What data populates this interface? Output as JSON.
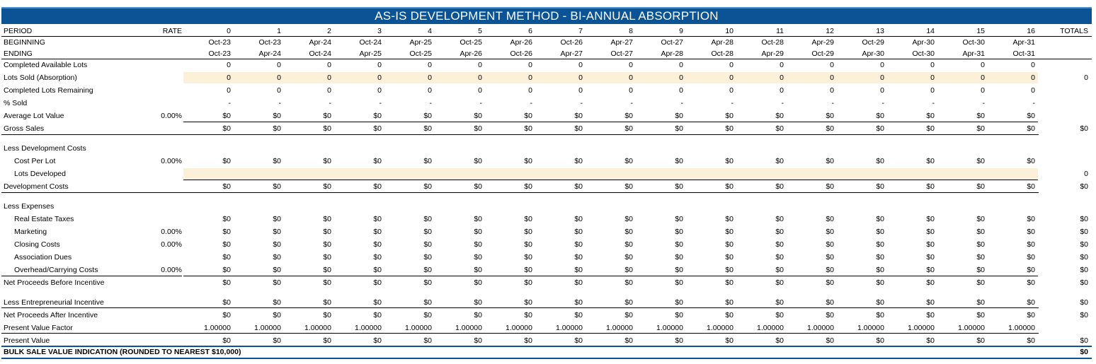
{
  "title": "AS-IS DEVELOPMENT METHOD - BI-ANNUAL ABSORPTION",
  "headers": {
    "period": "PERIOD",
    "rate": "RATE",
    "totals": "TOTALS",
    "beginning": "BEGINNING",
    "ending": "ENDING"
  },
  "periods": [
    "0",
    "1",
    "2",
    "3",
    "4",
    "5",
    "6",
    "7",
    "8",
    "9",
    "10",
    "11",
    "12",
    "13",
    "14",
    "15",
    "16"
  ],
  "beginning": [
    "Oct-23",
    "Oct-23",
    "Apr-24",
    "Oct-24",
    "Apr-25",
    "Oct-25",
    "Apr-26",
    "Oct-26",
    "Apr-27",
    "Oct-27",
    "Apr-28",
    "Oct-28",
    "Apr-29",
    "Oct-29",
    "Apr-30",
    "Oct-30",
    "Apr-31"
  ],
  "ending": [
    "Oct-23",
    "Apr-24",
    "Oct-24",
    "Apr-25",
    "Oct-25",
    "Apr-26",
    "Oct-26",
    "Apr-27",
    "Oct-27",
    "Apr-28",
    "Oct-28",
    "Apr-29",
    "Oct-29",
    "Apr-30",
    "Oct-30",
    "Apr-31",
    "Oct-31"
  ],
  "rows": [
    {
      "label": "Completed Available Lots",
      "rate": "",
      "cell": "0",
      "total": ""
    },
    {
      "label": "Lots Sold (Absorption)",
      "rate": "",
      "cell": "0",
      "total": "0"
    },
    {
      "label": "Completed Lots Remaining",
      "rate": "",
      "cell": "0",
      "total": ""
    },
    {
      "label": "% Sold",
      "rate": "",
      "cell": "-",
      "total": ""
    },
    {
      "label": "Average Lot Value",
      "rate": "0.00%",
      "cell": "$0",
      "total": ""
    },
    {
      "label": "Gross Sales",
      "rate": "",
      "cell": "$0",
      "total": "$0"
    },
    {
      "label": "Less Development Costs",
      "rate": "",
      "cell": "",
      "total": ""
    },
    {
      "label": "Cost Per Lot",
      "rate": "0.00%",
      "cell": "$0",
      "total": ""
    },
    {
      "label": "Lots Developed",
      "rate": "",
      "cell": "",
      "total": "0"
    },
    {
      "label": "Development Costs",
      "rate": "",
      "cell": "$0",
      "total": "$0"
    },
    {
      "label": "Less Expenses",
      "rate": "",
      "cell": "",
      "total": ""
    },
    {
      "label": "Real Estate Taxes",
      "rate": "",
      "cell": "$0",
      "total": "$0"
    },
    {
      "label": "Marketing",
      "rate": "0.00%",
      "cell": "$0",
      "total": "$0"
    },
    {
      "label": "Closing Costs",
      "rate": "0.00%",
      "cell": "$0",
      "total": "$0"
    },
    {
      "label": "Association Dues",
      "rate": "",
      "cell": "$0",
      "total": "$0"
    },
    {
      "label": "Overhead/Carrying Costs",
      "rate": "0.00%",
      "cell": "$0",
      "total": "$0"
    },
    {
      "label": "Net Proceeds Before Incentive",
      "rate": "",
      "cell": "$0",
      "total": "$0"
    },
    {
      "label": "Less Entrepreneurial Incentive",
      "rate": "",
      "cell": "$0",
      "total": "$0"
    },
    {
      "label": "Net Proceeds After Incentive",
      "rate": "",
      "cell": "$0",
      "total": "$0"
    },
    {
      "label": "Present Value Factor",
      "rate": "",
      "cell": "1.00000",
      "total": ""
    },
    {
      "label": "Present Value",
      "rate": "",
      "cell": "$0",
      "total": "$0"
    }
  ],
  "bulk_sale": {
    "label": "BULK SALE VALUE INDICATION (ROUNDED TO NEAREST $10,000)",
    "value": "$0"
  }
}
